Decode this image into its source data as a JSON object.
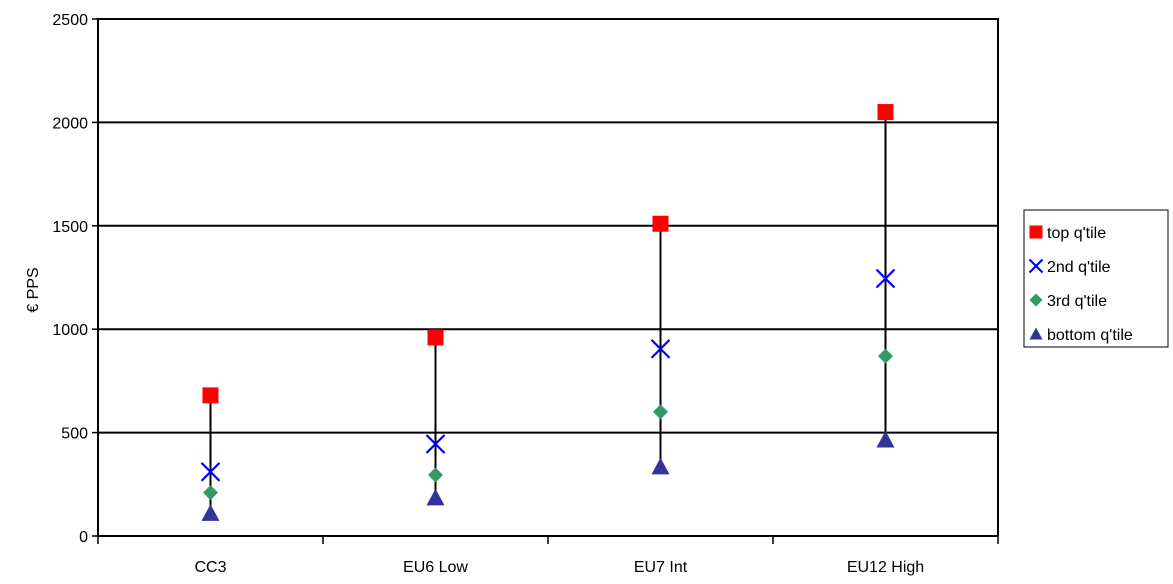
{
  "chart_data": {
    "type": "scatter",
    "title": "",
    "xlabel": "",
    "ylabel": "€ PPS",
    "categories": [
      "CC3",
      "EU6 Low",
      "EU7 Int",
      "EU12 High"
    ],
    "ylim": [
      0,
      2500
    ],
    "yticks": [
      0,
      500,
      1000,
      1500,
      2000,
      2500
    ],
    "grid": "horizontal",
    "legend_position": "right",
    "range_lines": true,
    "series": [
      {
        "name": "top q'tile",
        "marker": "square",
        "color": "#ff0000",
        "values": [
          680,
          960,
          1510,
          2050
        ]
      },
      {
        "name": "2nd q'tile",
        "marker": "x",
        "color": "#0000ff",
        "values": [
          310,
          445,
          905,
          1245
        ]
      },
      {
        "name": "3rd q'tile",
        "marker": "diamond",
        "color": "#339966",
        "values": [
          210,
          295,
          600,
          870
        ]
      },
      {
        "name": "bottom q'tile",
        "marker": "triangle",
        "color": "#333399",
        "values": [
          110,
          185,
          335,
          465
        ]
      }
    ]
  }
}
